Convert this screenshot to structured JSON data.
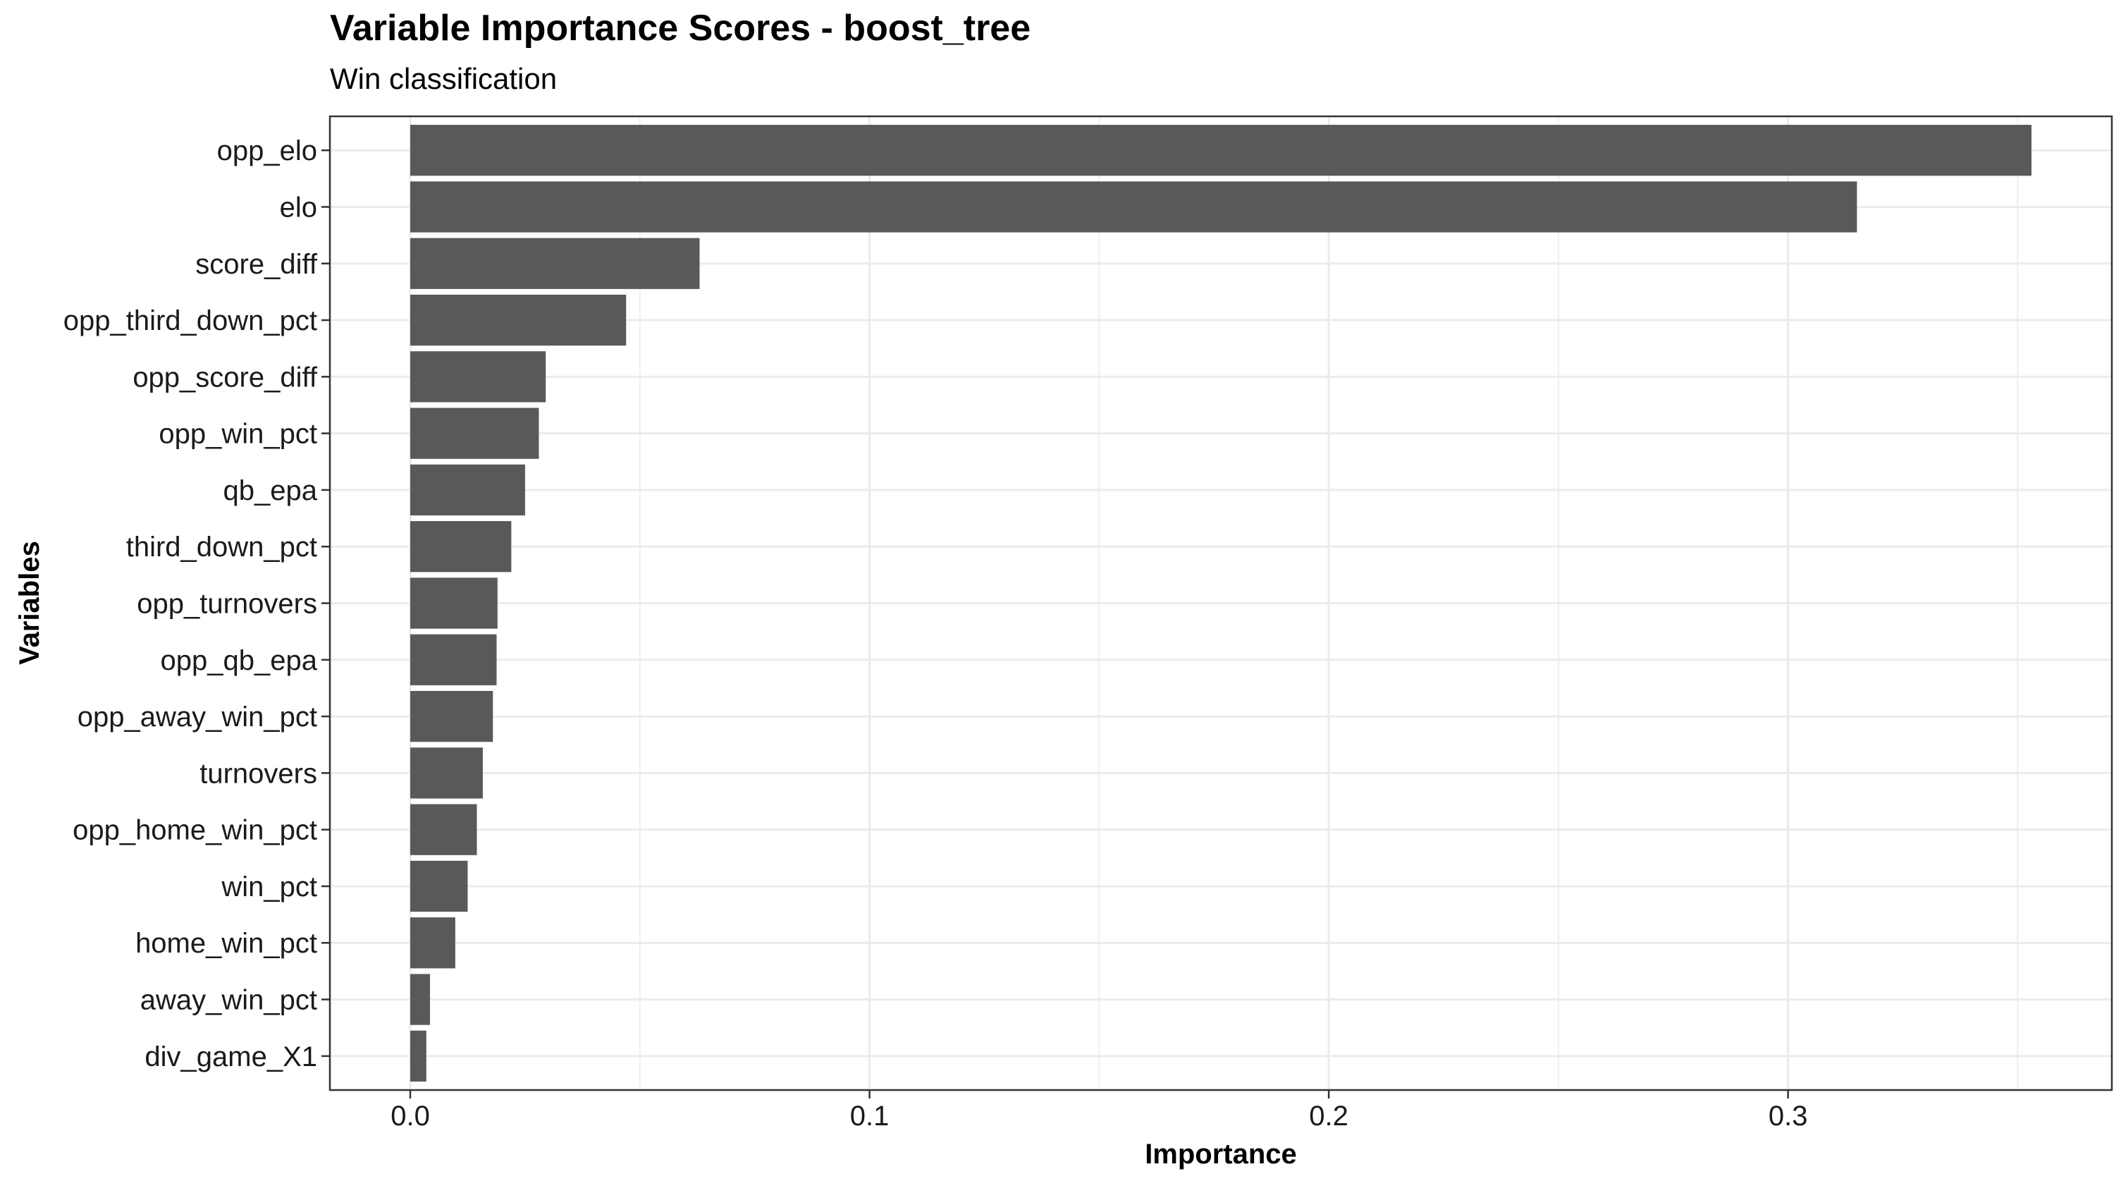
{
  "chart_data": {
    "type": "bar",
    "orientation": "horizontal",
    "title": "Variable Importance Scores - boost_tree",
    "subtitle": "Win classification",
    "xlabel": "Importance",
    "ylabel": "Variables",
    "categories": [
      "opp_elo",
      "elo",
      "score_diff",
      "opp_third_down_pct",
      "opp_score_diff",
      "opp_win_pct",
      "qb_epa",
      "third_down_pct",
      "opp_turnovers",
      "opp_qb_epa",
      "opp_away_win_pct",
      "turnovers",
      "opp_home_win_pct",
      "win_pct",
      "home_win_pct",
      "away_win_pct",
      "div_game_X1"
    ],
    "values": [
      0.353,
      0.315,
      0.063,
      0.047,
      0.0295,
      0.028,
      0.025,
      0.022,
      0.019,
      0.0188,
      0.018,
      0.0158,
      0.0145,
      0.0125,
      0.0098,
      0.0043,
      0.0035
    ],
    "xlim": [
      -0.0175,
      0.3705
    ],
    "xticks": [
      "0.0",
      "0.1",
      "0.2",
      "0.3"
    ],
    "grid": true,
    "colors": {
      "bar": "#595959",
      "grid": "#ebebeb",
      "axis": "#333333"
    }
  }
}
